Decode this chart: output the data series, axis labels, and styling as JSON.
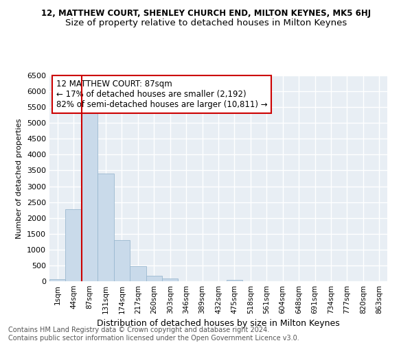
{
  "title1": "12, MATTHEW COURT, SHENLEY CHURCH END, MILTON KEYNES, MK5 6HJ",
  "title2": "Size of property relative to detached houses in Milton Keynes",
  "xlabel": "Distribution of detached houses by size in Milton Keynes",
  "ylabel": "Number of detached properties",
  "annotation_title": "12 MATTHEW COURT: 87sqm",
  "annotation_line1": "← 17% of detached houses are smaller (2,192)",
  "annotation_line2": "82% of semi-detached houses are larger (10,811) →",
  "footer1": "Contains HM Land Registry data © Crown copyright and database right 2024.",
  "footer2": "Contains public sector information licensed under the Open Government Licence v3.0.",
  "bar_categories": [
    "1sqm",
    "44sqm",
    "87sqm",
    "131sqm",
    "174sqm",
    "217sqm",
    "260sqm",
    "303sqm",
    "346sqm",
    "389sqm",
    "432sqm",
    "475sqm",
    "518sqm",
    "561sqm",
    "604sqm",
    "648sqm",
    "691sqm",
    "734sqm",
    "777sqm",
    "820sqm",
    "863sqm"
  ],
  "bar_values": [
    60,
    2280,
    5450,
    3400,
    1300,
    480,
    180,
    80,
    0,
    0,
    0,
    50,
    0,
    0,
    0,
    0,
    0,
    0,
    0,
    0,
    0
  ],
  "bar_color": "#c9daea",
  "bar_edge_color": "#9ab8d0",
  "highlight_bar_index": 2,
  "highlight_line_color": "#cc0000",
  "annotation_box_color": "#ffffff",
  "annotation_box_edge_color": "#cc0000",
  "background_color": "#e8eef4",
  "ylim": [
    0,
    6500
  ],
  "yticks": [
    0,
    500,
    1000,
    1500,
    2000,
    2500,
    3000,
    3500,
    4000,
    4500,
    5000,
    5500,
    6000,
    6500
  ],
  "title1_fontsize": 8.5,
  "title2_fontsize": 9.5,
  "annotation_fontsize": 8.5,
  "footer_fontsize": 7,
  "ylabel_fontsize": 8,
  "xlabel_fontsize": 9
}
